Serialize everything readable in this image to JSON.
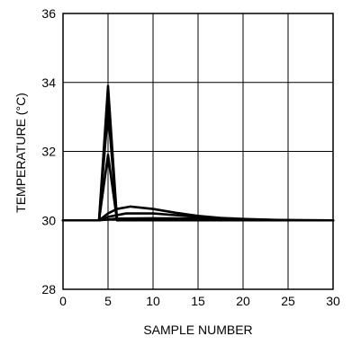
{
  "chart_data": {
    "type": "line",
    "title": "",
    "xlabel": "SAMPLE NUMBER",
    "ylabel": "TEMPERATURE (°C)",
    "xlim": [
      0,
      30
    ],
    "ylim": [
      28,
      36
    ],
    "xticks": [
      0,
      5,
      10,
      15,
      20,
      25,
      30
    ],
    "yticks": [
      28,
      30,
      32,
      34,
      36
    ],
    "grid": true,
    "series": [
      {
        "x": [
          0,
          4,
          5,
          6,
          30
        ],
        "y": [
          30,
          30,
          33.9,
          30,
          30
        ]
      },
      {
        "x": [
          0,
          4,
          5,
          6,
          30
        ],
        "y": [
          30,
          30,
          33.2,
          30,
          30
        ]
      },
      {
        "x": [
          0,
          4,
          5,
          6,
          30
        ],
        "y": [
          30,
          30,
          31.9,
          30,
          30
        ]
      },
      {
        "x": [
          0,
          4,
          5,
          6,
          7.5,
          10,
          12.5,
          15,
          17.5,
          20,
          22.5,
          25,
          30
        ],
        "y": [
          30,
          30,
          30.2,
          30.33,
          30.4,
          30.33,
          30.22,
          30.13,
          30.07,
          30.04,
          30.02,
          30,
          30
        ]
      },
      {
        "x": [
          0,
          4,
          5,
          7,
          10,
          12.5,
          15,
          17.5,
          20,
          22.5,
          25,
          30
        ],
        "y": [
          30,
          30,
          30.1,
          30.2,
          30.2,
          30.15,
          30.1,
          30.06,
          30.03,
          30.01,
          30,
          30
        ]
      },
      {
        "x": [
          0,
          4,
          6,
          10,
          15,
          20,
          30
        ],
        "y": [
          30,
          30,
          30.05,
          30.06,
          30.05,
          30.02,
          30
        ]
      }
    ]
  }
}
